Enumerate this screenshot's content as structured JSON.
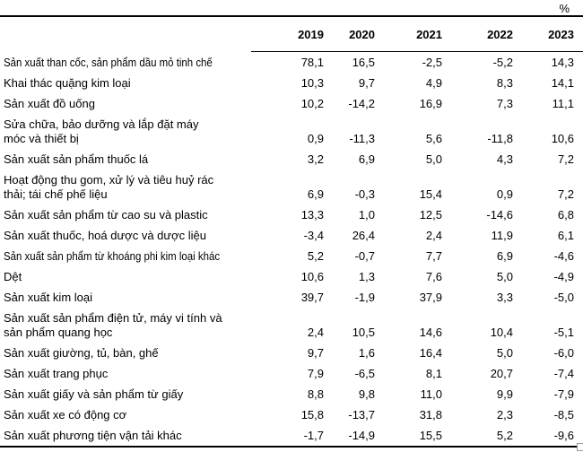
{
  "unit_label": "%",
  "table": {
    "years": [
      "2019",
      "2020",
      "2021",
      "2022",
      "2023"
    ],
    "rows": [
      {
        "label": "Sản xuất than cốc, sản phẩm dầu mỏ tinh chế",
        "label2": "",
        "condensed": true,
        "values": [
          "78,1",
          "16,5",
          "-2,5",
          "-5,2",
          "14,3"
        ]
      },
      {
        "label": "Khai thác quặng kim loại",
        "label2": "",
        "condensed": false,
        "values": [
          "10,3",
          "9,7",
          "4,9",
          "8,3",
          "14,1"
        ]
      },
      {
        "label": "Sản xuất đồ uống",
        "label2": "",
        "condensed": false,
        "values": [
          "10,2",
          "-14,2",
          "16,9",
          "7,3",
          "11,1"
        ]
      },
      {
        "label": "Sửa chữa, bảo dưỡng và lắp đặt máy",
        "label2": "móc và thiết bị",
        "condensed": false,
        "values": [
          "0,9",
          "-11,3",
          "5,6",
          "-11,8",
          "10,6"
        ]
      },
      {
        "label": "Sản xuất sản phẩm thuốc lá",
        "label2": "",
        "condensed": false,
        "values": [
          "3,2",
          "6,9",
          "5,0",
          "4,3",
          "7,2"
        ]
      },
      {
        "label": "Hoạt động thu gom, xử lý và tiêu huỷ rác",
        "label2": "thải; tái chế phế liệu",
        "condensed": false,
        "values": [
          "6,9",
          "-0,3",
          "15,4",
          "0,9",
          "7,2"
        ]
      },
      {
        "label": "Sản xuất sản phẩm từ cao su và plastic",
        "label2": "",
        "condensed": false,
        "values": [
          "13,3",
          "1,0",
          "12,5",
          "-14,6",
          "6,8"
        ]
      },
      {
        "label": "Sản xuất thuốc, hoá dược và dược liệu",
        "label2": "",
        "condensed": false,
        "values": [
          "-3,4",
          "26,4",
          "2,4",
          "11,9",
          "6,1"
        ]
      },
      {
        "label": "Sản xuất sản phẩm từ khoáng phi kim loại khác",
        "label2": "",
        "condensed": true,
        "values": [
          "5,2",
          "-0,7",
          "7,7",
          "6,9",
          "-4,6"
        ]
      },
      {
        "label": "Dệt",
        "label2": "",
        "condensed": false,
        "values": [
          "10,6",
          "1,3",
          "7,6",
          "5,0",
          "-4,9"
        ]
      },
      {
        "label": "Sản xuất kim loại",
        "label2": "",
        "condensed": false,
        "values": [
          "39,7",
          "-1,9",
          "37,9",
          "3,3",
          "-5,0"
        ]
      },
      {
        "label": "Sản xuất sản phẩm điện tử, máy vi tính và",
        "label2": "sản phẩm quang học",
        "condensed": false,
        "values": [
          "2,4",
          "10,5",
          "14,6",
          "10,4",
          "-5,1"
        ]
      },
      {
        "label": "Sản xuất giường, tủ, bàn, ghế",
        "label2": "",
        "condensed": false,
        "values": [
          "9,7",
          "1,6",
          "16,4",
          "5,0",
          "-6,0"
        ]
      },
      {
        "label": "Sản xuất trang phục",
        "label2": "",
        "condensed": false,
        "values": [
          "7,9",
          "-6,5",
          "8,1",
          "20,7",
          "-7,4"
        ]
      },
      {
        "label": "Sản xuất giấy và sản phẩm từ giấy",
        "label2": "",
        "condensed": false,
        "values": [
          "8,8",
          "9,8",
          "11,0",
          "9,9",
          "-7,9"
        ]
      },
      {
        "label": "Sản xuất xe có động cơ",
        "label2": "",
        "condensed": false,
        "values": [
          "15,8",
          "-13,7",
          "31,8",
          "2,3",
          "-8,5"
        ]
      },
      {
        "label": "Sản xuất phương tiện vận tải khác",
        "label2": "",
        "condensed": false,
        "values": [
          "-1,7",
          "-14,9",
          "15,5",
          "5,2",
          "-9,6"
        ]
      }
    ]
  }
}
